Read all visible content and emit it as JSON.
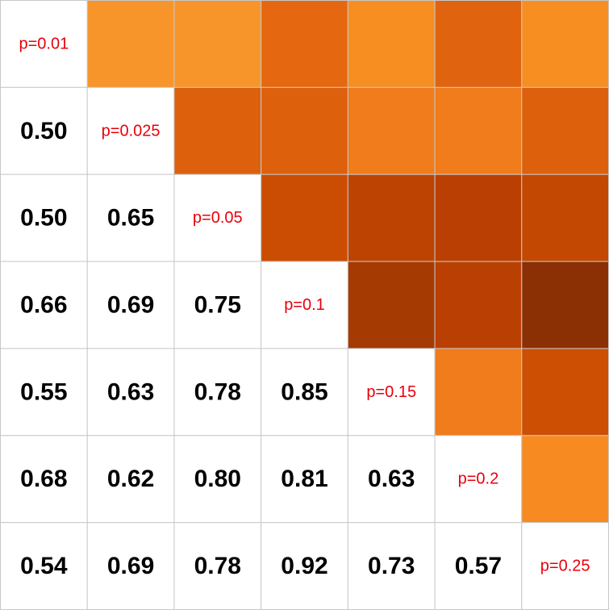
{
  "chart_data": {
    "type": "heatmap",
    "labels": [
      "p=0.01",
      "p=0.025",
      "p=0.05",
      "p=0.1",
      "p=0.15",
      "p=0.2",
      "p=0.25"
    ],
    "lower_values": [
      [
        null,
        null,
        null,
        null,
        null,
        null,
        null
      ],
      [
        0.5,
        null,
        null,
        null,
        null,
        null,
        null
      ],
      [
        0.5,
        0.65,
        null,
        null,
        null,
        null,
        null
      ],
      [
        0.66,
        0.69,
        0.75,
        null,
        null,
        null,
        null
      ],
      [
        0.55,
        0.63,
        0.78,
        0.85,
        null,
        null,
        null
      ],
      [
        0.68,
        0.62,
        0.8,
        0.81,
        0.63,
        null,
        null
      ],
      [
        0.54,
        0.69,
        0.78,
        0.92,
        0.73,
        0.57,
        null
      ]
    ],
    "upper_colors": [
      [
        null,
        "#f7952a",
        "#f7952a",
        "#e56811",
        "#f78e22",
        "#e0640f",
        "#f78e22"
      ],
      [
        null,
        null,
        "#dd600d",
        "#dd600d",
        "#f07c1b",
        "#f07c1b",
        "#dd600d"
      ],
      [
        null,
        null,
        null,
        "#cb4d03",
        "#bc4302",
        "#b94002",
        "#c34802"
      ],
      [
        null,
        null,
        null,
        null,
        "#a53a03",
        "#b94002",
        "#8a3004"
      ],
      [
        null,
        null,
        null,
        null,
        null,
        "#f07c1b",
        "#cd4f03"
      ],
      [
        null,
        null,
        null,
        null,
        null,
        null,
        "#f78b22"
      ],
      [
        null,
        null,
        null,
        null,
        null,
        null,
        null
      ]
    ],
    "diagonal_label_color": "#e8000b",
    "value_color": "#000000",
    "grid_color": "#c8c8c8",
    "background_color": "#ffffff"
  }
}
